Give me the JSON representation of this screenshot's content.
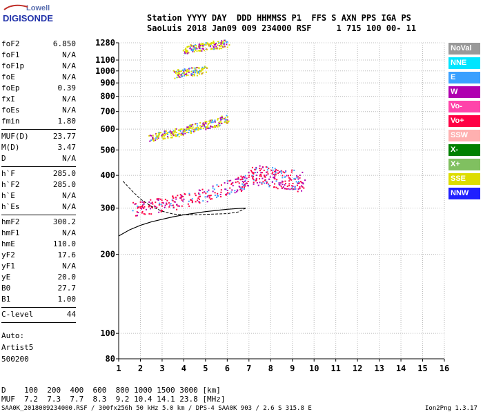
{
  "logo": {
    "top": "Lowell",
    "bottom": "DIGISONDE"
  },
  "header": {
    "line1": "Station YYYY DAY  DDD HHMMSS P1  FFS S AXN PPS IGA PS",
    "line2": "SaoLuis 2018 Jan09 009 234000 RSF     1 715 100 00- 11"
  },
  "params": [
    {
      "k": "foF2",
      "v": "6.850"
    },
    {
      "k": "foF1",
      "v": "N/A"
    },
    {
      "k": "foF1p",
      "v": "N/A"
    },
    {
      "k": "foE",
      "v": "N/A"
    },
    {
      "k": "foEp",
      "v": "0.39"
    },
    {
      "k": "fxI",
      "v": "N/A"
    },
    {
      "k": "foEs",
      "v": "N/A"
    },
    {
      "k": "fmin",
      "v": "1.80"
    },
    {
      "k": "MUF(D)",
      "v": "23.77"
    },
    {
      "k": "M(D)",
      "v": "3.47"
    },
    {
      "k": "D",
      "v": "N/A"
    },
    {
      "k": "h`F",
      "v": "285.0"
    },
    {
      "k": "h`F2",
      "v": "285.0"
    },
    {
      "k": "h`E",
      "v": "N/A"
    },
    {
      "k": "h`Es",
      "v": "N/A"
    },
    {
      "k": "hmF2",
      "v": "300.2"
    },
    {
      "k": "hmF1",
      "v": "N/A"
    },
    {
      "k": "hmE",
      "v": "110.0"
    },
    {
      "k": "yF2",
      "v": "17.6"
    },
    {
      "k": "yF1",
      "v": "N/A"
    },
    {
      "k": "yE",
      "v": "20.0"
    },
    {
      "k": "B0",
      "v": "27.7"
    },
    {
      "k": "B1",
      "v": "1.00"
    },
    {
      "k": "C-level",
      "v": "44"
    }
  ],
  "auto": {
    "label": "Auto:",
    "artist": "Artist5",
    "version": "500200"
  },
  "footer": {
    "d_row": "D    100  200  400  600  800 1000 1500 3000 [km]",
    "muf_row": "MUF  7.2  7.3  7.7  8.3  9.2 10.4 14.1 23.8 [MHz]",
    "file_line": "SAA0K_2018009234000.RSF / 300fx256h 50 kHz 5.0 km / DPS-4 SAA0K 903 / 2.6 S 315.8 E",
    "version": "Ion2Png 1.3.17"
  },
  "legend": [
    {
      "label": "NoVal",
      "bg": "#999999",
      "fg": "#ffffff"
    },
    {
      "label": "NNE",
      "bg": "#00e5ff",
      "fg": "#ffffff"
    },
    {
      "label": "E",
      "bg": "#3aa0ff",
      "fg": "#ffffff"
    },
    {
      "label": "W",
      "bg": "#b000b0",
      "fg": "#ffffff"
    },
    {
      "label": "Vo-",
      "bg": "#ff44aa",
      "fg": "#ffffff"
    },
    {
      "label": "Vo+",
      "bg": "#ff0044",
      "fg": "#ffffff"
    },
    {
      "label": "SSW",
      "bg": "#ffb0b0",
      "fg": "#ffffff"
    },
    {
      "label": "X-",
      "bg": "#008000",
      "fg": "#ffffff"
    },
    {
      "label": "X+",
      "bg": "#80c060",
      "fg": "#ffffff"
    },
    {
      "label": "SSE",
      "bg": "#dddd00",
      "fg": "#ffffff"
    },
    {
      "label": "NNW",
      "bg": "#2020ff",
      "fg": "#ffffff"
    }
  ],
  "chart_data": {
    "type": "scatter",
    "xlabel": "",
    "ylabel": "",
    "xlim": [
      1,
      16
    ],
    "ylim": [
      80,
      1280
    ],
    "y_scale": "log",
    "x_ticks": [
      "1",
      "2",
      "3",
      "4",
      "5",
      "6",
      "7",
      "8",
      "9",
      "10",
      "11",
      "12",
      "13",
      "14",
      "15",
      "16"
    ],
    "y_ticks": [
      "80",
      "100",
      "200",
      "300",
      "400",
      "500",
      "600",
      "700",
      "800",
      "900",
      "1000",
      "1100",
      "1280"
    ],
    "grid": true,
    "profile_curve": {
      "x": [
        1.0,
        1.5,
        2.0,
        2.5,
        3.0,
        3.5,
        4.0,
        4.5,
        5.0,
        5.5,
        6.0,
        6.5,
        6.85
      ],
      "y": [
        235,
        248,
        258,
        266,
        272,
        278,
        283,
        287,
        291,
        294,
        297,
        299,
        300
      ]
    },
    "lower_curve": {
      "x": [
        1.2,
        1.6,
        2.0,
        2.5,
        3.0,
        3.5,
        4.0,
        4.5,
        5.0,
        5.5,
        6.0,
        6.5,
        6.85
      ],
      "y": [
        380,
        350,
        325,
        305,
        292,
        285,
        283,
        283,
        284,
        285,
        286,
        290,
        300
      ]
    },
    "echo_clusters": [
      {
        "name": "F-trace",
        "x": [
          1.7,
          2.5,
          3.5,
          4.5,
          5.5,
          6.5,
          6.85
        ],
        "y": [
          300,
          305,
          315,
          330,
          350,
          370,
          380
        ],
        "color": "#ff0044"
      },
      {
        "name": "spread-F",
        "x": [
          7.0,
          7.5,
          8.0,
          8.5,
          9.0,
          9.5
        ],
        "y": [
          390,
          400,
          395,
          390,
          385,
          380
        ],
        "color": "#ff0044"
      },
      {
        "name": "second-hop",
        "x": [
          2.4,
          3.0,
          3.5,
          4.0,
          4.5,
          5.0,
          5.5,
          6.0
        ],
        "y": [
          560,
          570,
          580,
          595,
          610,
          625,
          640,
          660
        ],
        "color": "#dddd00"
      },
      {
        "name": "third-hop",
        "x": [
          3.5,
          4.0,
          4.5,
          5.0
        ],
        "y": [
          975,
          990,
          1000,
          1010
        ],
        "color": "#dddd00"
      },
      {
        "name": "high",
        "x": [
          4.0,
          4.5,
          5.0,
          5.5,
          6.0
        ],
        "y": [
          1200,
          1230,
          1250,
          1265,
          1275
        ],
        "color": "#dddd00"
      }
    ]
  }
}
